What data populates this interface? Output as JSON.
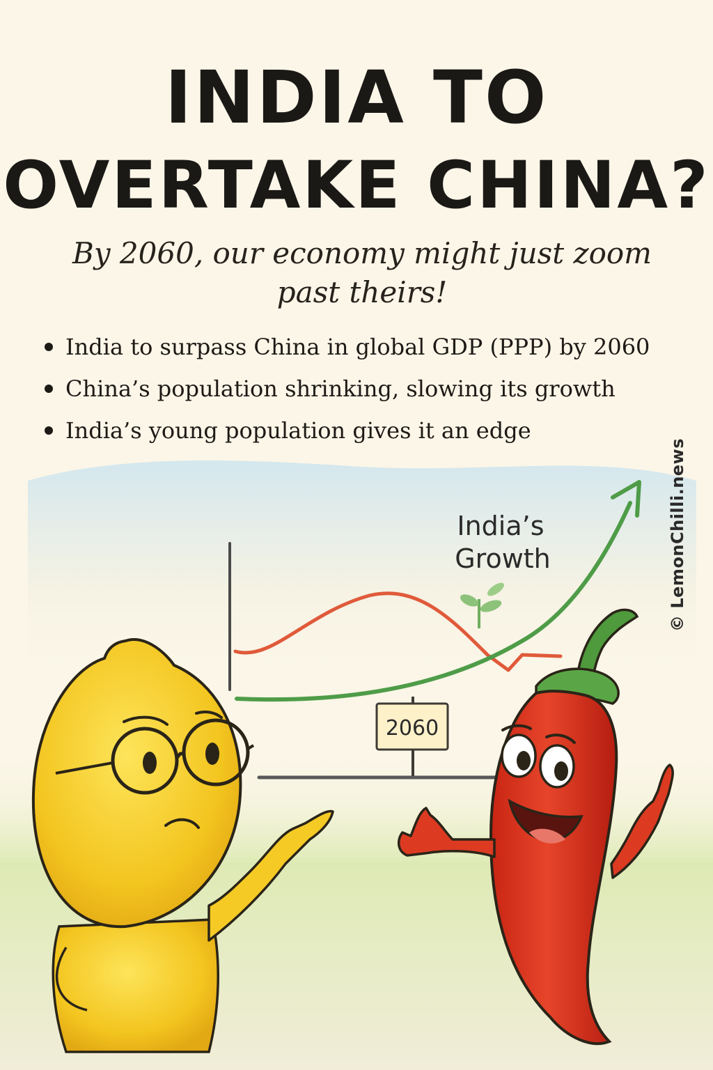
{
  "poster": {
    "headline_line1": "INDIA TO",
    "headline_line2": "OVERTAKE CHINA?",
    "subtitle": "By 2060, our economy might just zoom past theirs!",
    "bullets": [
      "India to surpass China in global GDP (PPP) by 2060",
      "China’s population shrinking, slowing its growth",
      "India’s young population gives it an edge"
    ],
    "watermark": "© LemonChilli.news"
  },
  "illustration": {
    "growth_label_line1": "India’s",
    "growth_label_line2": "Growth",
    "signpost_year": "2060",
    "characters": [
      "lemon",
      "chilli"
    ]
  },
  "colors": {
    "background": "#fbf6e8",
    "india_line": "#4f9c48",
    "china_line": "#e05a3a",
    "lemon": "#f3cc24",
    "chilli": "#d8321d"
  }
}
